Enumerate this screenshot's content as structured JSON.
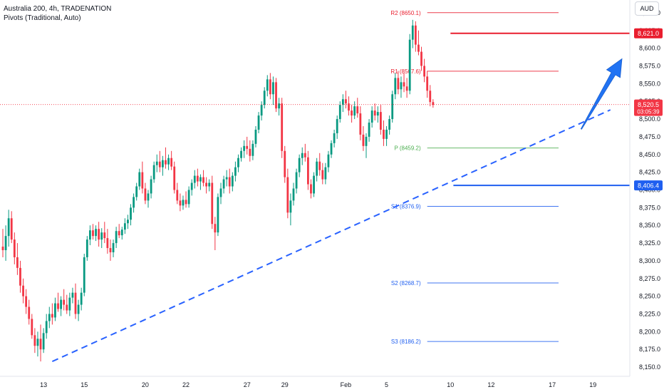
{
  "legend": {
    "title": "Australia 200, 4h, TRADENATION",
    "indicator": "Pivots (Traditional, Auto)"
  },
  "currency": "AUD",
  "colors": {
    "up": "#089981",
    "down": "#f23645",
    "resistance": "#e91e2e",
    "support": "#1f5ff0",
    "trend": "#2962ff",
    "pivot": "#4caf50",
    "arrow": "#2173f3"
  },
  "chart_data": {
    "type": "candlestick",
    "y_range": [
      8137,
      8668
    ],
    "x_tick_labels": [
      {
        "label": "13",
        "bar": 14
      },
      {
        "label": "15",
        "bar": 28
      },
      {
        "label": "20",
        "bar": 49
      },
      {
        "label": "22",
        "bar": 63
      },
      {
        "label": "27",
        "bar": 84
      },
      {
        "label": "29",
        "bar": 97
      },
      {
        "label": "Feb",
        "bar": 118
      },
      {
        "label": "5",
        "bar": 132
      },
      {
        "label": "10",
        "bar": 154
      },
      {
        "label": "12",
        "bar": 168
      },
      {
        "label": "17",
        "bar": 189
      },
      {
        "label": "19",
        "bar": 203
      }
    ],
    "y_tick_labels": [
      "8,650.0",
      "8,625.0",
      "8,600.0",
      "8,575.0",
      "8,550.0",
      "8,525.0",
      "8,500.0",
      "8,475.0",
      "8,450.0",
      "8,425.0",
      "8,400.0",
      "8,375.0",
      "8,350.0",
      "8,325.0",
      "8,300.0",
      "8,275.0",
      "8,250.0",
      "8,225.0",
      "8,200.0",
      "8,175.0",
      "8,150.0"
    ],
    "pivot_levels": [
      {
        "name": "R2",
        "label": "R2 (8650.1)",
        "value": 8650.1,
        "from_bar": 146,
        "kind": "resistance"
      },
      {
        "name": "R1",
        "label": "R1 (8567.6)",
        "value": 8567.6,
        "from_bar": 146,
        "kind": "resistance"
      },
      {
        "name": "P",
        "label": "P (8459.2)",
        "value": 8459.2,
        "from_bar": 146,
        "kind": "pivot"
      },
      {
        "name": "S1",
        "label": "S1 (8376.9)",
        "value": 8376.9,
        "from_bar": 146,
        "kind": "support"
      },
      {
        "name": "S2",
        "label": "S2 (8268.7)",
        "value": 8268.7,
        "from_bar": 146,
        "kind": "support"
      },
      {
        "name": "S3",
        "label": "S3 (8186.2)",
        "value": 8186.2,
        "from_bar": 146,
        "kind": "support"
      }
    ],
    "horizontal_lines": [
      {
        "value": 8621.0,
        "label": "8,621.0",
        "from_bar": 154,
        "kind": "resistance"
      },
      {
        "value": 8406.4,
        "label": "8,406.4",
        "from_bar": 155,
        "kind": "support"
      }
    ],
    "current_price": {
      "value": 8520.5,
      "label": "8,520.5",
      "countdown": "03:05:39"
    },
    "trendline": {
      "start": {
        "bar": 17,
        "value": 8158
      },
      "end": {
        "bar": 209,
        "value": 8513
      }
    },
    "arrow": {
      "start": {
        "bar": 199,
        "value": 8486
      },
      "end": {
        "bar": 213,
        "value": 8585
      }
    },
    "candles": [
      [
        8320,
        8345,
        8305,
        8315
      ],
      [
        8315,
        8350,
        8300,
        8335
      ],
      [
        8335,
        8372,
        8320,
        8360
      ],
      [
        8360,
        8370,
        8325,
        8330
      ],
      [
        8330,
        8340,
        8295,
        8305
      ],
      [
        8305,
        8325,
        8280,
        8290
      ],
      [
        8290,
        8300,
        8255,
        8265
      ],
      [
        8265,
        8275,
        8240,
        8250
      ],
      [
        8250,
        8260,
        8225,
        8235
      ],
      [
        8235,
        8245,
        8210,
        8218
      ],
      [
        8218,
        8225,
        8190,
        8195
      ],
      [
        8195,
        8205,
        8170,
        8180
      ],
      [
        8180,
        8200,
        8165,
        8190
      ],
      [
        8190,
        8210,
        8158,
        8175
      ],
      [
        8175,
        8205,
        8170,
        8198
      ],
      [
        8198,
        8225,
        8190,
        8215
      ],
      [
        8215,
        8235,
        8205,
        8225
      ],
      [
        8225,
        8240,
        8210,
        8220
      ],
      [
        8220,
        8248,
        8215,
        8240
      ],
      [
        8240,
        8255,
        8228,
        8232
      ],
      [
        8232,
        8250,
        8222,
        8245
      ],
      [
        8245,
        8260,
        8230,
        8238
      ],
      [
        8238,
        8252,
        8225,
        8230
      ],
      [
        8230,
        8255,
        8222,
        8248
      ],
      [
        8248,
        8262,
        8240,
        8255
      ],
      [
        8255,
        8268,
        8218,
        8225
      ],
      [
        8225,
        8245,
        8215,
        8238
      ],
      [
        8238,
        8262,
        8230,
        8255
      ],
      [
        8255,
        8310,
        8250,
        8305
      ],
      [
        8305,
        8335,
        8300,
        8330
      ],
      [
        8330,
        8350,
        8322,
        8343
      ],
      [
        8343,
        8352,
        8330,
        8335
      ],
      [
        8335,
        8350,
        8328,
        8345
      ],
      [
        8345,
        8355,
        8320,
        8330
      ],
      [
        8330,
        8346,
        8318,
        8340
      ],
      [
        8340,
        8355,
        8325,
        8332
      ],
      [
        8332,
        8345,
        8310,
        8318
      ],
      [
        8318,
        8330,
        8300,
        8312
      ],
      [
        8312,
        8330,
        8305,
        8325
      ],
      [
        8325,
        8348,
        8318,
        8342
      ],
      [
        8342,
        8352,
        8332,
        8336
      ],
      [
        8336,
        8348,
        8330,
        8344
      ],
      [
        8344,
        8360,
        8338,
        8353
      ],
      [
        8353,
        8365,
        8345,
        8358
      ],
      [
        8358,
        8380,
        8350,
        8375
      ],
      [
        8375,
        8395,
        8368,
        8390
      ],
      [
        8390,
        8410,
        8385,
        8405
      ],
      [
        8405,
        8430,
        8400,
        8425
      ],
      [
        8425,
        8440,
        8395,
        8402
      ],
      [
        8402,
        8410,
        8380,
        8385
      ],
      [
        8385,
        8400,
        8375,
        8395
      ],
      [
        8395,
        8420,
        8388,
        8415
      ],
      [
        8415,
        8440,
        8410,
        8435
      ],
      [
        8435,
        8450,
        8425,
        8440
      ],
      [
        8440,
        8455,
        8425,
        8432
      ],
      [
        8432,
        8448,
        8420,
        8442
      ],
      [
        8442,
        8460,
        8430,
        8436
      ],
      [
        8436,
        8450,
        8428,
        8445
      ],
      [
        8445,
        8455,
        8428,
        8433
      ],
      [
        8433,
        8440,
        8395,
        8400
      ],
      [
        8400,
        8410,
        8380,
        8385
      ],
      [
        8385,
        8395,
        8370,
        8378
      ],
      [
        8378,
        8392,
        8372,
        8386
      ],
      [
        8386,
        8398,
        8375,
        8380
      ],
      [
        8380,
        8405,
        8375,
        8400
      ],
      [
        8400,
        8415,
        8392,
        8410
      ],
      [
        8410,
        8428,
        8402,
        8420
      ],
      [
        8420,
        8430,
        8405,
        8412
      ],
      [
        8412,
        8422,
        8400,
        8418
      ],
      [
        8418,
        8428,
        8405,
        8410
      ],
      [
        8410,
        8418,
        8395,
        8405
      ],
      [
        8405,
        8415,
        8398,
        8410
      ],
      [
        8410,
        8420,
        8345,
        8352
      ],
      [
        8352,
        8362,
        8315,
        8340
      ],
      [
        8340,
        8395,
        8335,
        8390
      ],
      [
        8390,
        8410,
        8380,
        8402
      ],
      [
        8402,
        8420,
        8395,
        8415
      ],
      [
        8415,
        8428,
        8405,
        8418
      ],
      [
        8418,
        8430,
        8395,
        8405
      ],
      [
        8405,
        8425,
        8398,
        8420
      ],
      [
        8420,
        8440,
        8412,
        8432
      ],
      [
        8432,
        8450,
        8425,
        8445
      ],
      [
        8445,
        8460,
        8440,
        8455
      ],
      [
        8455,
        8470,
        8445,
        8462
      ],
      [
        8462,
        8475,
        8450,
        8458
      ],
      [
        8458,
        8470,
        8440,
        8448
      ],
      [
        8448,
        8470,
        8442,
        8465
      ],
      [
        8465,
        8490,
        8460,
        8485
      ],
      [
        8485,
        8510,
        8480,
        8505
      ],
      [
        8505,
        8525,
        8498,
        8520
      ],
      [
        8520,
        8545,
        8515,
        8540
      ],
      [
        8540,
        8562,
        8532,
        8556
      ],
      [
        8556,
        8565,
        8528,
        8535
      ],
      [
        8535,
        8560,
        8520,
        8552
      ],
      [
        8552,
        8558,
        8510,
        8515
      ],
      [
        8515,
        8530,
        8505,
        8522
      ],
      [
        8522,
        8530,
        8445,
        8455
      ],
      [
        8455,
        8462,
        8410,
        8418
      ],
      [
        8418,
        8430,
        8360,
        8368
      ],
      [
        8368,
        8395,
        8350,
        8385
      ],
      [
        8385,
        8410,
        8378,
        8402
      ],
      [
        8402,
        8430,
        8395,
        8425
      ],
      [
        8425,
        8450,
        8418,
        8445
      ],
      [
        8445,
        8460,
        8435,
        8452
      ],
      [
        8452,
        8465,
        8440,
        8446
      ],
      [
        8446,
        8455,
        8400,
        8408
      ],
      [
        8408,
        8415,
        8388,
        8395
      ],
      [
        8395,
        8425,
        8390,
        8420
      ],
      [
        8420,
        8445,
        8412,
        8440
      ],
      [
        8440,
        8452,
        8420,
        8428
      ],
      [
        8428,
        8438,
        8408,
        8415
      ],
      [
        8415,
        8438,
        8408,
        8432
      ],
      [
        8432,
        8455,
        8425,
        8450
      ],
      [
        8450,
        8470,
        8445,
        8466
      ],
      [
        8466,
        8485,
        8460,
        8480
      ],
      [
        8480,
        8505,
        8472,
        8500
      ],
      [
        8500,
        8525,
        8495,
        8520
      ],
      [
        8520,
        8535,
        8510,
        8528
      ],
      [
        8528,
        8540,
        8515,
        8522
      ],
      [
        8522,
        8532,
        8505,
        8512
      ],
      [
        8512,
        8520,
        8495,
        8505
      ],
      [
        8505,
        8525,
        8500,
        8518
      ],
      [
        8518,
        8530,
        8502,
        8508
      ],
      [
        8508,
        8518,
        8470,
        8478
      ],
      [
        8478,
        8490,
        8455,
        8462
      ],
      [
        8462,
        8480,
        8445,
        8475
      ],
      [
        8475,
        8500,
        8468,
        8495
      ],
      [
        8495,
        8518,
        8488,
        8512
      ],
      [
        8512,
        8522,
        8498,
        8505
      ],
      [
        8505,
        8518,
        8495,
        8510
      ],
      [
        8510,
        8520,
        8478,
        8485
      ],
      [
        8485,
        8498,
        8462,
        8472
      ],
      [
        8472,
        8490,
        8462,
        8485
      ],
      [
        8485,
        8505,
        8478,
        8500
      ],
      [
        8500,
        8540,
        8495,
        8535
      ],
      [
        8535,
        8565,
        8528,
        8558
      ],
      [
        8558,
        8568,
        8535,
        8542
      ],
      [
        8542,
        8560,
        8530,
        8552
      ],
      [
        8552,
        8565,
        8538,
        8546
      ],
      [
        8546,
        8558,
        8530,
        8540
      ],
      [
        8540,
        8620,
        8535,
        8612
      ],
      [
        8612,
        8640,
        8600,
        8632
      ],
      [
        8632,
        8638,
        8595,
        8605
      ],
      [
        8605,
        8625,
        8590,
        8595
      ],
      [
        8595,
        8602,
        8568,
        8575
      ],
      [
        8575,
        8585,
        8552,
        8560
      ],
      [
        8560,
        8568,
        8530,
        8540
      ],
      [
        8540,
        8548,
        8518,
        8524
      ],
      [
        8524,
        8528,
        8516,
        8520
      ]
    ]
  }
}
